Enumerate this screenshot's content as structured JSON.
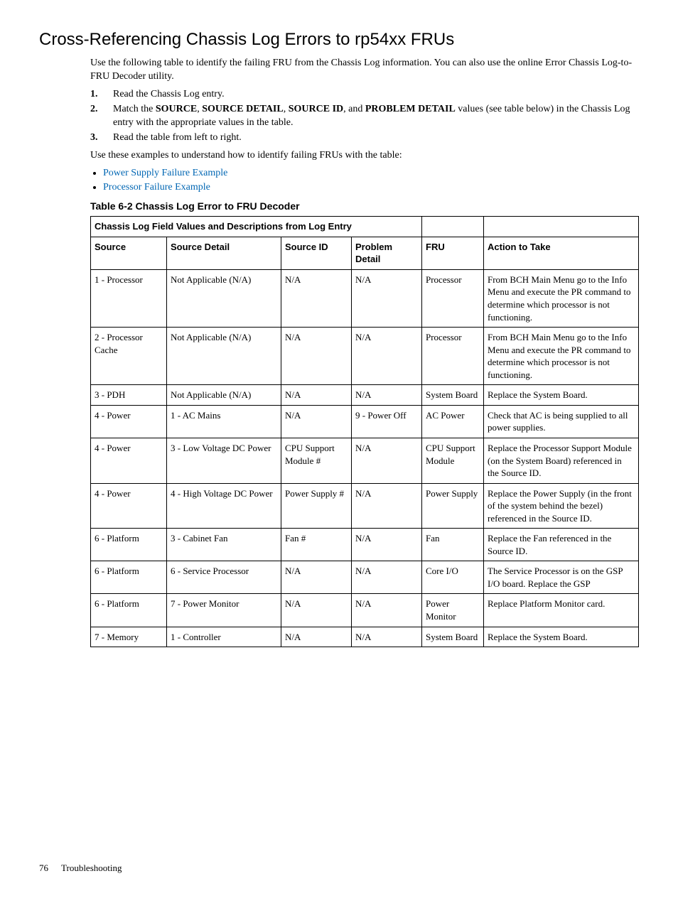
{
  "title": "Cross-Referencing Chassis Log Errors to rp54xx FRUs",
  "intro": "Use the following table to identify the failing FRU from the Chassis Log information. You can also use the online Error Chassis Log-to-FRU Decoder utility.",
  "steps": [
    "Read the Chassis Log entry.",
    "Match the <b>SOURCE</b>, <b>SOURCE DETAIL</b>, <b>SOURCE ID</b>, and <b>PROBLEM DETAIL</b> values (see table below) in the Chassis Log entry with the appropriate values in the table.",
    "Read the table from left to right."
  ],
  "examples_intro": "Use these examples to understand how to identify failing FRUs with the table:",
  "bullets": [
    "Power Supply Failure Example",
    "Processor Failure Example"
  ],
  "table_caption": "Table 6-2 Chassis Log Error to FRU Decoder",
  "span_header": "Chassis Log Field Values and Descriptions from Log Entry",
  "headers": {
    "source": "Source",
    "source_detail": "Source Detail",
    "source_id": "Source ID",
    "problem_detail": "Problem Detail",
    "fru": "FRU",
    "action": "Action to Take"
  },
  "rows": [
    {
      "source": "1 - Processor",
      "detail": "Not Applicable (N/A)",
      "sid": "N/A",
      "problem": "N/A",
      "fru": "Processor",
      "action": "From BCH Main Menu go to the Info Menu and execute the PR command to determine which processor is not functioning."
    },
    {
      "source": "2 - Processor Cache",
      "detail": "Not Applicable (N/A)",
      "sid": "N/A",
      "problem": "N/A",
      "fru": "Processor",
      "action": "From BCH Main Menu go to the Info Menu and execute the PR command to determine which processor is not functioning."
    },
    {
      "source": "3 - PDH",
      "detail": "Not Applicable (N/A)",
      "sid": "N/A",
      "problem": "N/A",
      "fru": "System Board",
      "action": "Replace the System Board."
    },
    {
      "source": "4 - Power",
      "detail": "1 - AC Mains",
      "sid": "N/A",
      "problem": "9 - Power Off",
      "fru": "AC Power",
      "action": "Check that AC is being supplied to all power supplies."
    },
    {
      "source": "4 - Power",
      "detail": "3 - Low Voltage DC Power",
      "sid": "CPU Support Module #",
      "problem": "N/A",
      "fru": "CPU Support Module",
      "action": "Replace the Processor Support Module (on the System Board) referenced in the Source ID."
    },
    {
      "source": "4 - Power",
      "detail": "4 - High Voltage DC Power",
      "sid": "Power Supply #",
      "problem": "N/A",
      "fru": "Power Supply",
      "action": "Replace the Power Supply (in the front of the system behind the bezel) referenced in the Source ID."
    },
    {
      "source": "6 - Platform",
      "detail": "3 - Cabinet Fan",
      "sid": "Fan #",
      "problem": "N/A",
      "fru": "Fan",
      "action": "Replace the Fan referenced in the Source ID."
    },
    {
      "source": "6 - Platform",
      "detail": "6 - Service Processor",
      "sid": "N/A",
      "problem": "N/A",
      "fru": "Core I/O",
      "action": "The Service Processor is on the GSP I/O board. Replace the GSP"
    },
    {
      "source": "6 - Platform",
      "detail": "7 - Power Monitor",
      "sid": "N/A",
      "problem": "N/A",
      "fru": "Power Monitor",
      "action": "Replace Platform Monitor card."
    },
    {
      "source": "7 - Memory",
      "detail": "1 - Controller",
      "sid": "N/A",
      "problem": "N/A",
      "fru": "System Board",
      "action": "Replace the System Board."
    }
  ],
  "footer": {
    "page": "76",
    "section": "Troubleshooting"
  }
}
